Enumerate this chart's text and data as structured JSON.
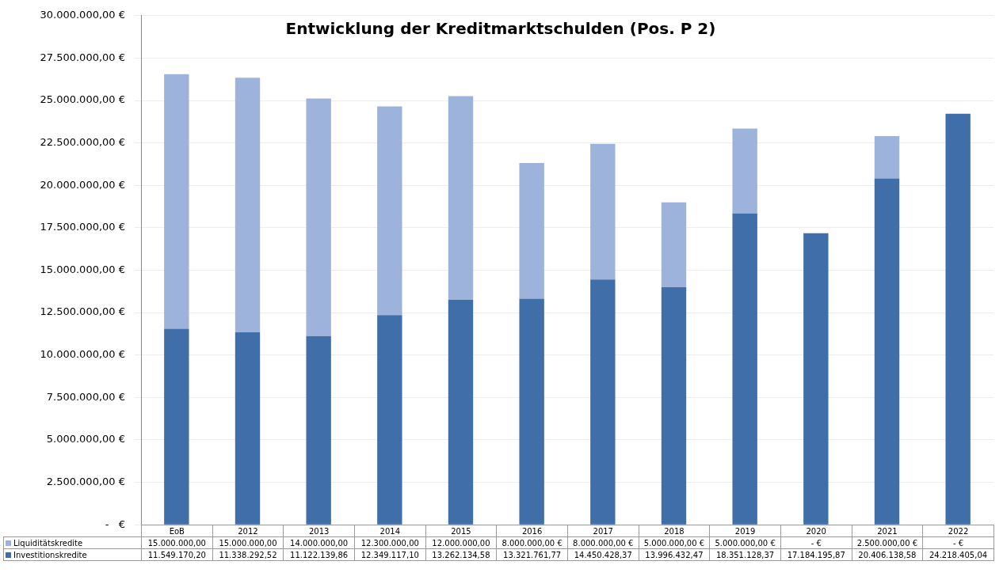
{
  "chart_data": {
    "type": "bar",
    "title": "Entwicklung der Kreditmarktschulden (Pos. P 2)",
    "categories": [
      "EoB",
      "2012",
      "2013",
      "2014",
      "2015",
      "2016",
      "2017",
      "2018",
      "2019",
      "2020",
      "2021",
      "2022"
    ],
    "stacked": true,
    "series": [
      {
        "name": "Investitionskredite",
        "color": "#3f6ea8",
        "values": [
          11549170.2,
          11338292.52,
          11122139.86,
          12349117.1,
          13262134.58,
          13321761.77,
          14450428.37,
          13996432.47,
          18351128.37,
          17184195.87,
          20406138.58,
          24218405.04
        ],
        "value_labels": [
          "11.549.170,20",
          "11.338.292,52",
          "11.122.139,86",
          "12.349.117,10",
          "13.262.134,58",
          "13.321.761,77",
          "14.450.428,37",
          "13.996.432,47",
          "18.351.128,37",
          "17.184.195,87",
          "20.406.138,58",
          "24.218.405,04"
        ]
      },
      {
        "name": "Liquiditätskredite",
        "color": "#9db3db",
        "values": [
          15000000,
          15000000,
          14000000,
          12300000,
          12000000,
          8000000,
          8000000,
          5000000,
          5000000,
          0,
          2500000,
          0
        ],
        "value_labels": [
          "15.000.000,00",
          "15.000.000,00",
          "14.000.000,00",
          "12.300.000,00",
          "12.000.000,00",
          "8.000.000,00 €",
          "8.000.000,00 €",
          "5.000.000,00 €",
          "5.000.000,00 €",
          "-   €",
          "2.500.000,00 €",
          "-   €"
        ]
      }
    ],
    "ylim": [
      0,
      30000000
    ],
    "yticks": [
      {
        "value": 0,
        "label": "-   €"
      },
      {
        "value": 2500000,
        "label": "2.500.000,00 €"
      },
      {
        "value": 5000000,
        "label": "5.000.000,00 €"
      },
      {
        "value": 7500000,
        "label": "7.500.000,00 €"
      },
      {
        "value": 10000000,
        "label": "10.000.000,00 €"
      },
      {
        "value": 12500000,
        "label": "12.500.000,00 €"
      },
      {
        "value": 15000000,
        "label": "15.000.000,00 €"
      },
      {
        "value": 17500000,
        "label": "17.500.000,00 €"
      },
      {
        "value": 20000000,
        "label": "20.000.000,00 €"
      },
      {
        "value": 22500000,
        "label": "22.500.000,00 €"
      },
      {
        "value": 25000000,
        "label": "25.000.000,00 €"
      },
      {
        "value": 27500000,
        "label": "27.500.000,00 €"
      },
      {
        "value": 30000000,
        "label": "30.000.000,00 €"
      }
    ],
    "grid": "y",
    "legend": "bottom left"
  }
}
